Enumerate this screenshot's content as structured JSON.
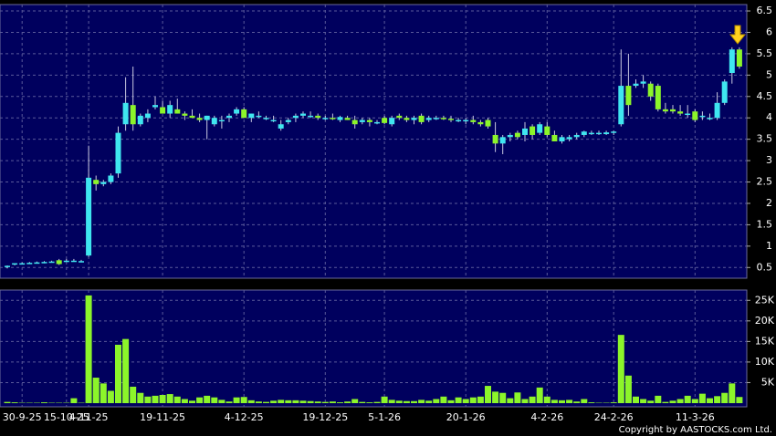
{
  "chart_data": [
    {
      "type": "candlestick",
      "up_color": "#3fe6f0",
      "down_color": "#8cf52a",
      "wick_color": "#c8c8e0",
      "ylim": [
        0.25,
        6.65
      ],
      "yticks": [
        0.5,
        1,
        1.5,
        2,
        2.5,
        3,
        3.5,
        4,
        4.5,
        5,
        5.5,
        6,
        6.5
      ],
      "grid": true,
      "open": [
        0.52,
        0.57,
        0.6,
        0.6,
        0.62,
        0.63,
        0.64,
        0.67,
        0.65,
        0.66,
        0.64,
        0.78,
        2.55,
        2.45,
        2.5,
        2.7,
        3.85,
        4.3,
        3.85,
        4.0,
        4.25,
        4.25,
        4.1,
        4.2,
        4.1,
        4.05,
        4.0,
        3.95,
        3.85,
        3.95,
        4.0,
        4.1,
        4.2,
        4.0,
        4.05,
        4.0,
        3.95,
        3.75,
        3.9,
        4.0,
        4.05,
        4.05,
        4.05,
        4.0,
        4.0,
        3.95,
        4.0,
        3.95,
        3.9,
        3.95,
        3.9,
        4.0,
        3.85,
        4.05,
        4.0,
        3.95,
        4.05,
        3.95,
        4.0,
        4.0,
        3.98,
        3.95,
        3.95,
        3.95,
        3.9,
        3.95,
        3.6,
        3.4,
        3.55,
        3.65,
        3.6,
        3.8,
        3.65,
        3.8,
        3.6,
        3.45,
        3.5,
        3.55,
        3.6,
        3.65,
        3.65,
        3.62,
        3.65,
        3.85,
        4.75,
        4.75,
        4.8,
        4.8,
        4.75,
        4.2,
        4.2,
        4.15,
        4.1,
        4.15,
        4.05,
        4.0,
        4.0,
        4.35,
        5.05,
        5.6
      ],
      "high": [
        0.55,
        0.6,
        0.62,
        0.63,
        0.64,
        0.65,
        0.66,
        0.7,
        0.7,
        0.7,
        0.68,
        3.35,
        2.65,
        2.55,
        2.7,
        3.8,
        4.95,
        5.2,
        4.1,
        4.2,
        4.5,
        4.4,
        4.4,
        4.45,
        4.15,
        4.2,
        4.1,
        4.05,
        4.05,
        4.05,
        4.1,
        4.25,
        4.25,
        4.1,
        4.15,
        4.05,
        4.05,
        3.95,
        4.0,
        4.1,
        4.15,
        4.15,
        4.1,
        4.05,
        4.1,
        4.05,
        4.05,
        4.05,
        4.0,
        4.0,
        3.95,
        4.05,
        4.05,
        4.1,
        4.05,
        4.05,
        4.1,
        4.05,
        4.05,
        4.05,
        4.05,
        4.0,
        4.0,
        4.05,
        3.95,
        4.0,
        3.9,
        3.6,
        3.65,
        3.7,
        3.9,
        3.85,
        3.9,
        3.9,
        3.7,
        3.6,
        3.6,
        3.65,
        3.7,
        3.7,
        3.7,
        3.7,
        3.7,
        5.6,
        5.5,
        4.9,
        5.0,
        4.85,
        4.8,
        4.35,
        4.3,
        4.3,
        4.3,
        4.2,
        4.15,
        4.1,
        4.6,
        4.9,
        5.65,
        5.65
      ],
      "low": [
        0.48,
        0.55,
        0.58,
        0.58,
        0.6,
        0.6,
        0.62,
        0.56,
        0.63,
        0.64,
        0.62,
        0.75,
        2.3,
        2.4,
        2.45,
        2.6,
        3.7,
        3.7,
        3.8,
        3.9,
        4.2,
        4.1,
        4.0,
        4.1,
        3.95,
        4.0,
        3.9,
        3.5,
        3.8,
        3.75,
        3.9,
        4.05,
        4.0,
        3.9,
        4.0,
        3.95,
        3.9,
        3.7,
        3.85,
        3.9,
        4.0,
        4.0,
        3.95,
        3.95,
        3.95,
        3.9,
        3.95,
        3.75,
        3.85,
        3.8,
        3.85,
        3.85,
        3.8,
        3.95,
        3.9,
        3.85,
        3.85,
        3.9,
        3.95,
        3.95,
        3.9,
        3.9,
        3.85,
        3.85,
        3.8,
        3.75,
        3.2,
        3.15,
        3.45,
        3.5,
        3.45,
        3.5,
        3.6,
        3.55,
        3.45,
        3.4,
        3.45,
        3.5,
        3.55,
        3.6,
        3.6,
        3.6,
        3.6,
        3.8,
        4.05,
        4.7,
        4.7,
        4.4,
        4.15,
        4.1,
        4.1,
        4.05,
        4.0,
        3.9,
        3.95,
        3.95,
        3.95,
        4.3,
        4.8,
        5.15
      ],
      "close": [
        0.54,
        0.6,
        0.6,
        0.61,
        0.62,
        0.63,
        0.64,
        0.58,
        0.66,
        0.66,
        0.65,
        2.6,
        2.45,
        2.5,
        2.65,
        3.65,
        4.35,
        3.85,
        4.05,
        4.1,
        4.3,
        4.1,
        4.3,
        4.1,
        4.05,
        4.0,
        3.95,
        4.05,
        4.0,
        3.95,
        4.05,
        4.2,
        4.0,
        4.1,
        4.05,
        4.0,
        3.95,
        3.85,
        3.95,
        4.05,
        4.1,
        4.05,
        4.0,
        4.0,
        3.98,
        4.02,
        3.95,
        3.85,
        3.95,
        3.9,
        3.9,
        3.88,
        4.0,
        4.0,
        3.95,
        4.0,
        3.9,
        4.0,
        4.0,
        3.98,
        3.95,
        3.95,
        3.95,
        3.9,
        3.85,
        3.8,
        3.4,
        3.55,
        3.6,
        3.55,
        3.75,
        3.6,
        3.85,
        3.6,
        3.45,
        3.55,
        3.55,
        3.6,
        3.68,
        3.65,
        3.65,
        3.66,
        3.68,
        4.75,
        4.3,
        4.8,
        4.85,
        4.5,
        4.2,
        4.15,
        4.15,
        4.1,
        4.1,
        3.95,
        4.05,
        4.0,
        4.35,
        4.85,
        5.6,
        5.2
      ]
    },
    {
      "type": "bar",
      "color": "#8cf52a",
      "ylim": [
        0,
        27500
      ],
      "yticks": [
        {
          "value": 5000,
          "label": "5K"
        },
        {
          "value": 10000,
          "label": "10K"
        },
        {
          "value": 15000,
          "label": "15K"
        },
        {
          "value": 20000,
          "label": "20K"
        },
        {
          "value": 25000,
          "label": "25K"
        }
      ],
      "grid": true,
      "categories": [
        null,
        null,
        "30-9-25",
        null,
        null,
        null,
        null,
        null,
        "15-10-25",
        null,
        null,
        "4-11-25",
        null,
        null,
        null,
        null,
        null,
        null,
        null,
        null,
        null,
        "19-11-25",
        null,
        null,
        null,
        null,
        null,
        null,
        null,
        null,
        null,
        null,
        "4-12-25",
        null,
        null,
        null,
        null,
        null,
        null,
        null,
        null,
        null,
        null,
        "19-12-25",
        null,
        null,
        null,
        null,
        null,
        null,
        null,
        "5-1-26",
        null,
        null,
        null,
        null,
        null,
        null,
        null,
        null,
        null,
        null,
        "20-1-26",
        null,
        null,
        null,
        null,
        null,
        null,
        null,
        null,
        null,
        null,
        "4-2-26",
        null,
        null,
        null,
        null,
        null,
        null,
        null,
        null,
        "24-2-26",
        null,
        null,
        null,
        null,
        null,
        null,
        null,
        null,
        null,
        null,
        "11-3-26",
        null,
        null,
        null,
        null,
        null,
        null
      ],
      "values": [
        300,
        200,
        100,
        100,
        100,
        200,
        100,
        100,
        100,
        1200,
        100,
        26200,
        6200,
        4800,
        3000,
        14200,
        15600,
        4000,
        2500,
        1600,
        1800,
        2000,
        2200,
        1600,
        1000,
        600,
        1400,
        1800,
        1400,
        800,
        400,
        1400,
        1500,
        700,
        400,
        300,
        600,
        800,
        700,
        700,
        600,
        500,
        400,
        300,
        400,
        200,
        400,
        1000,
        300,
        200,
        300,
        1600,
        800,
        600,
        500,
        500,
        800,
        600,
        1000,
        1600,
        700,
        1400,
        1000,
        1400,
        1600,
        4200,
        2800,
        2500,
        1200,
        2600,
        1000,
        1600,
        3800,
        1600,
        800,
        700,
        800,
        400,
        1000,
        200,
        100,
        100,
        200,
        16600,
        6700,
        1600,
        1000,
        600,
        1800,
        300,
        600,
        1000,
        1800,
        1000,
        2300,
        1200,
        1700,
        2500,
        4800,
        1500
      ]
    }
  ],
  "copyright": "Copyright by AASTOCKS.com Ltd."
}
